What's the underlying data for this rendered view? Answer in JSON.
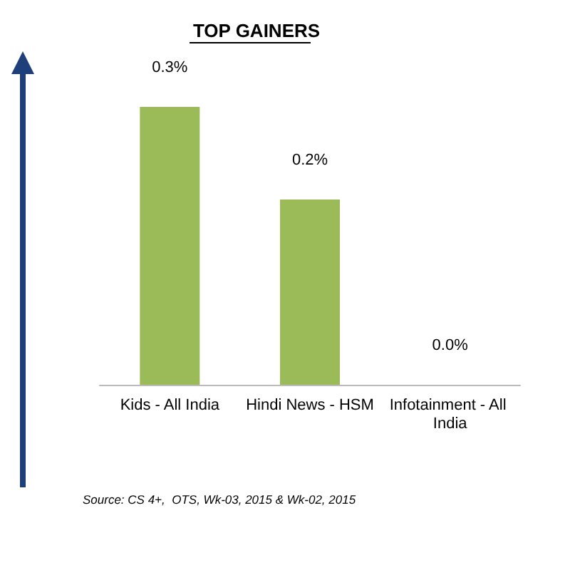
{
  "chart_data": {
    "type": "bar",
    "title": "TOP GAINERS",
    "categories": [
      "Kids - All India",
      "Hindi News - HSM",
      "Infotainment - All India"
    ],
    "values": [
      0.3,
      0.2,
      0.0
    ],
    "value_labels": [
      "0.3%",
      "0.2%",
      "0.0%"
    ],
    "color": "#9bbb59",
    "annotations": [
      "Source: CS 4+,  OTS, Wk-03, 2015 & Wk-02, 2015"
    ]
  }
}
